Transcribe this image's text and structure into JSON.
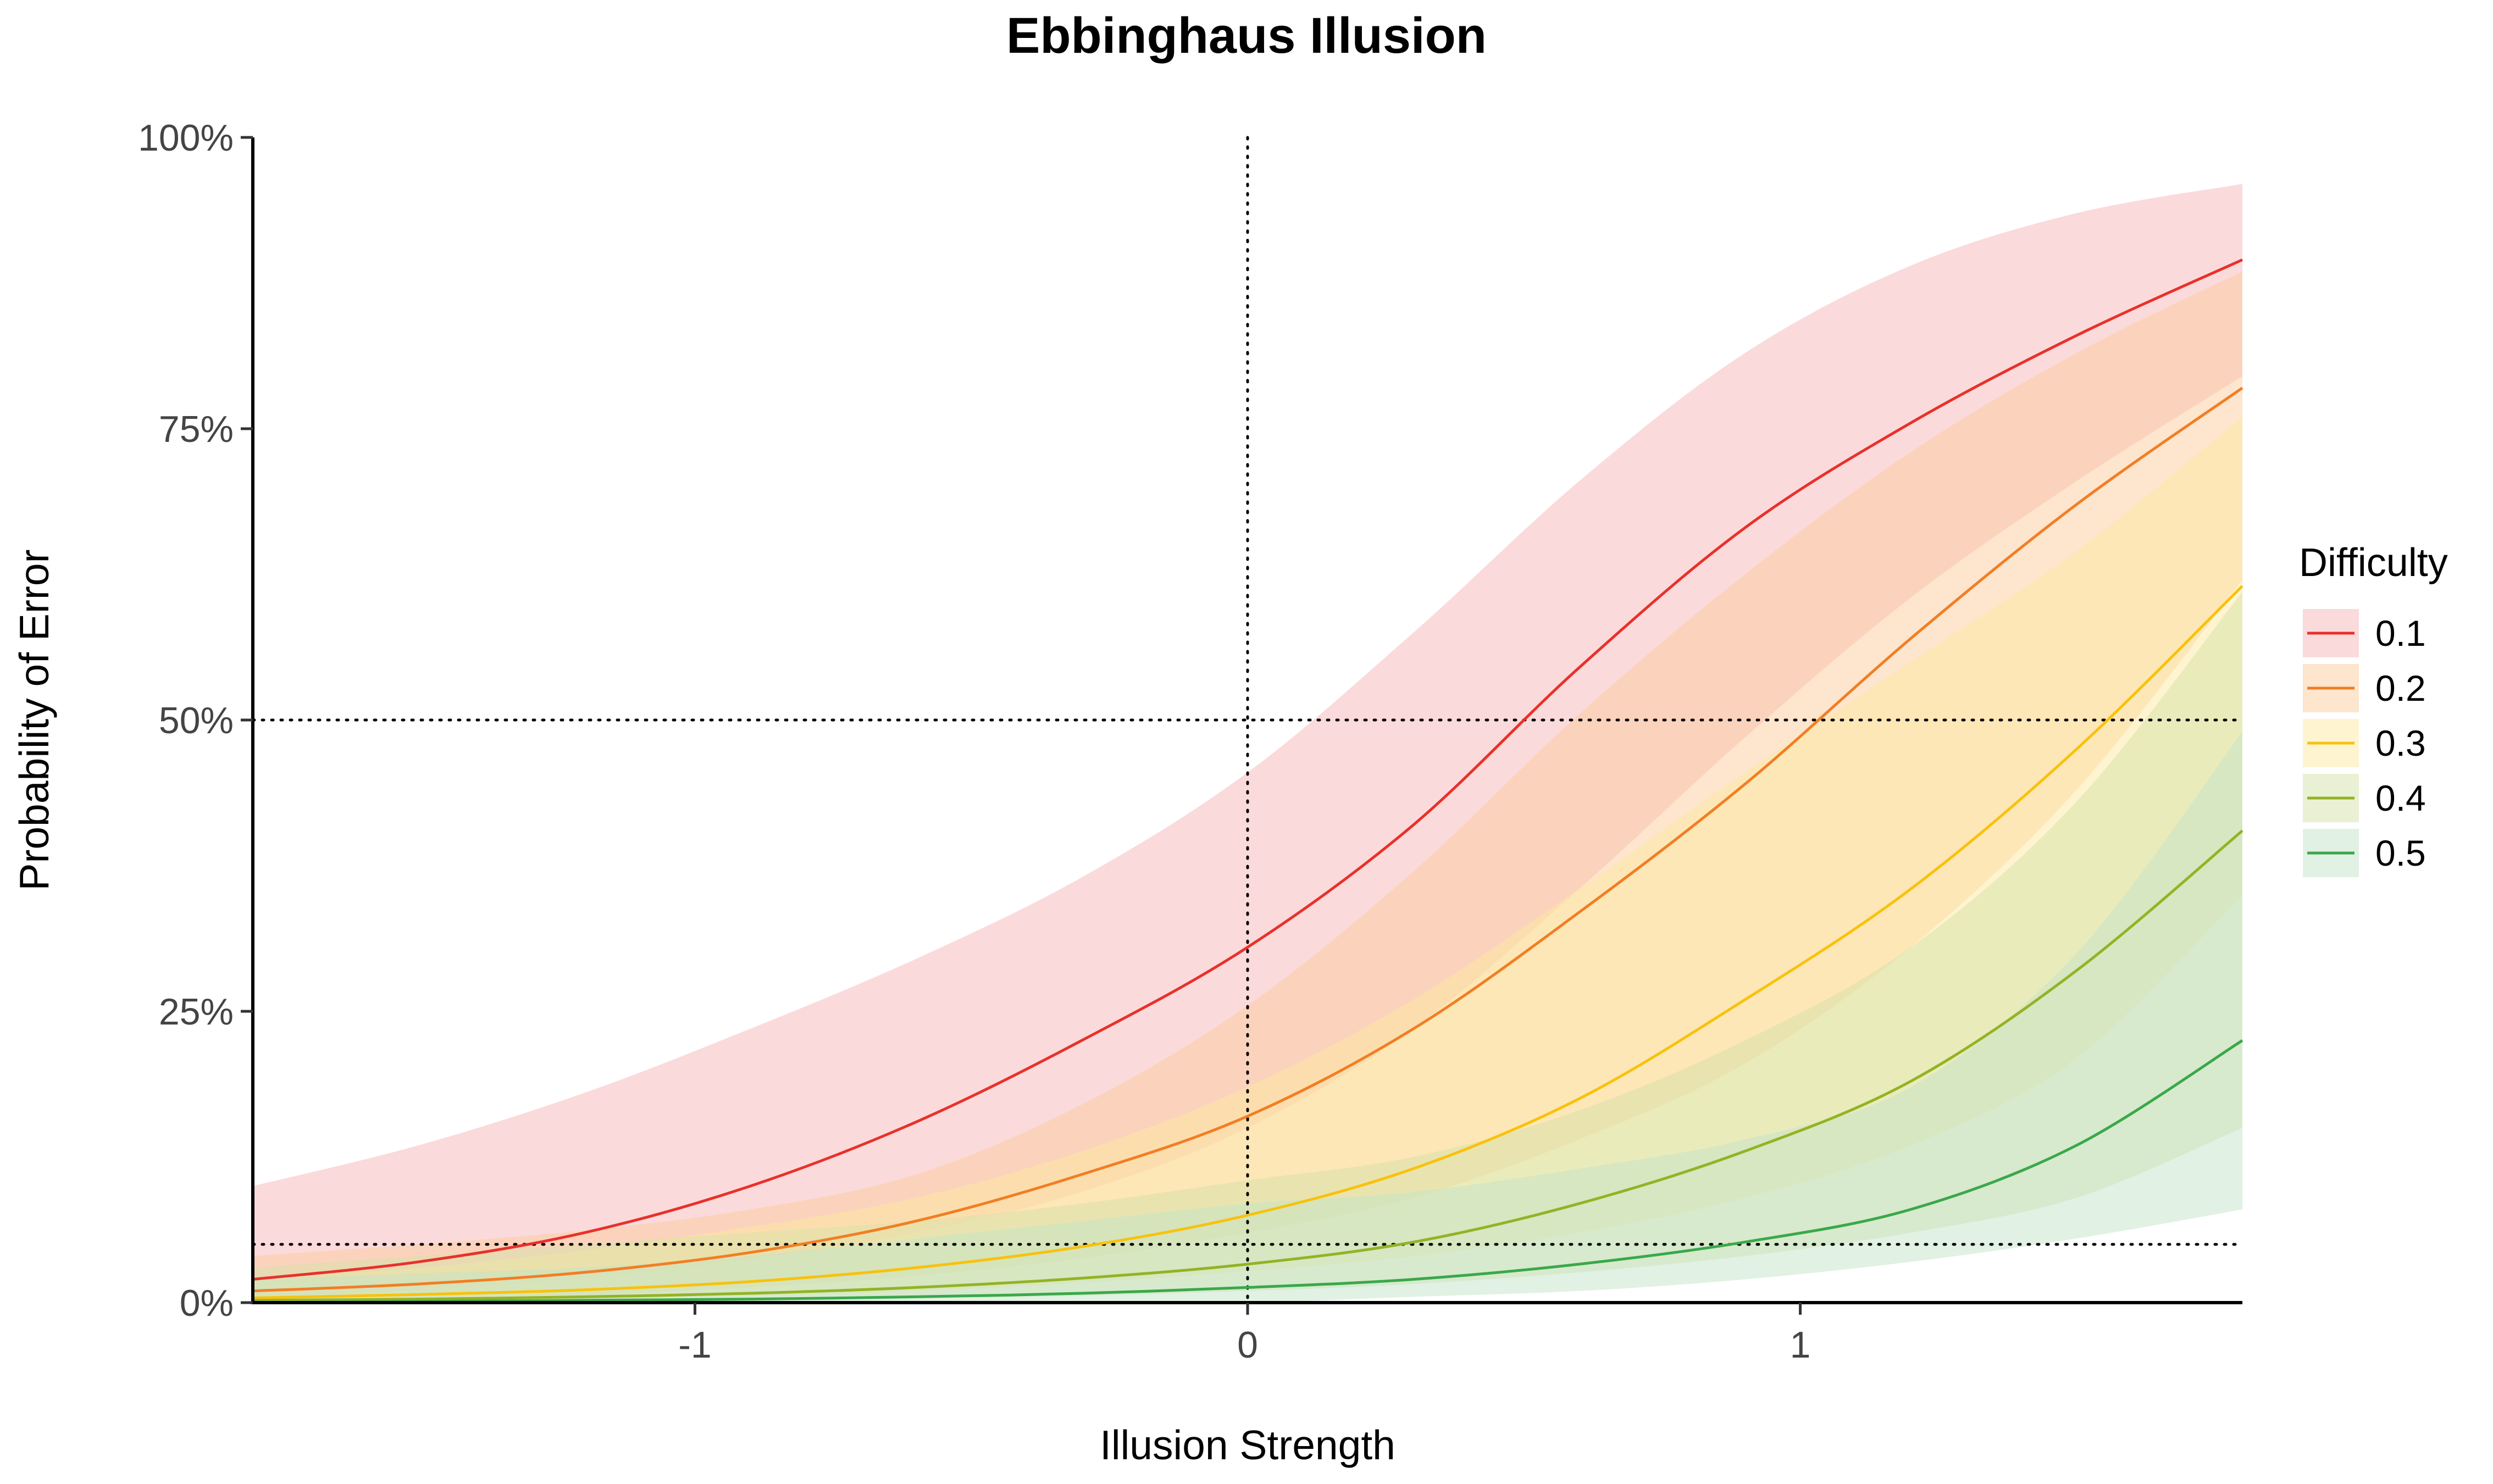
{
  "chart_data": {
    "type": "line",
    "title": "Ebbinghaus Illusion",
    "xlabel": "Illusion Strength",
    "ylabel": "Probability of Error",
    "xlim": [
      -1.8,
      1.8
    ],
    "ylim": [
      0,
      1
    ],
    "x_ticks": [
      -1,
      0,
      1
    ],
    "x_tick_labels": [
      "-1",
      "0",
      "1"
    ],
    "y_ticks": [
      0,
      0.25,
      0.5,
      0.75,
      1
    ],
    "y_tick_labels": [
      "0%",
      "25%",
      "50%",
      "75%",
      "100%"
    ],
    "reference_lines": {
      "vertical": [
        0
      ],
      "horizontal": [
        0.5,
        0.05
      ],
      "style": "dotted"
    },
    "grid": false,
    "legend": {
      "title": "Difficulty",
      "position": "right"
    },
    "x": [
      -1.8,
      -1.5,
      -1.2,
      -0.9,
      -0.6,
      -0.3,
      0,
      0.3,
      0.6,
      0.9,
      1.2,
      1.5,
      1.8
    ],
    "series": [
      {
        "name": "0.1",
        "color": "#E8312A",
        "fill": "#F8B6B8",
        "values": [
          0.02,
          0.035,
          0.06,
          0.1,
          0.155,
          0.225,
          0.305,
          0.41,
          0.545,
          0.665,
          0.755,
          0.83,
          0.895
        ],
        "lower": [
          0.005,
          0.011,
          0.021,
          0.037,
          0.06,
          0.095,
          0.15,
          0.235,
          0.355,
          0.485,
          0.605,
          0.705,
          0.795
        ],
        "upper": [
          0.1,
          0.135,
          0.18,
          0.235,
          0.295,
          0.365,
          0.455,
          0.575,
          0.705,
          0.815,
          0.89,
          0.935,
          0.96
        ]
      },
      {
        "name": "0.2",
        "color": "#F27E23",
        "fill": "#FBCB9E",
        "values": [
          0.01,
          0.016,
          0.026,
          0.043,
          0.07,
          0.11,
          0.16,
          0.235,
          0.335,
          0.445,
          0.57,
          0.685,
          0.785
        ],
        "lower": [
          0.002,
          0.004,
          0.007,
          0.013,
          0.023,
          0.038,
          0.06,
          0.09,
          0.14,
          0.205,
          0.305,
          0.44,
          0.62
        ],
        "upper": [
          0.04,
          0.05,
          0.062,
          0.08,
          0.11,
          0.17,
          0.255,
          0.37,
          0.505,
          0.625,
          0.73,
          0.815,
          0.885
        ]
      },
      {
        "name": "0.3",
        "color": "#F8C20C",
        "fill": "#FDE9A0",
        "values": [
          0.004,
          0.007,
          0.011,
          0.018,
          0.03,
          0.048,
          0.075,
          0.115,
          0.175,
          0.26,
          0.355,
          0.475,
          0.615
        ],
        "lower": [
          0.001,
          0.002,
          0.003,
          0.006,
          0.01,
          0.017,
          0.027,
          0.04,
          0.06,
          0.09,
          0.135,
          0.21,
          0.35
        ],
        "upper": [
          0.02,
          0.03,
          0.045,
          0.065,
          0.09,
          0.13,
          0.185,
          0.26,
          0.355,
          0.455,
          0.55,
          0.645,
          0.76
        ]
      },
      {
        "name": "0.4",
        "color": "#93B325",
        "fill": "#D6E2A8",
        "values": [
          0.002,
          0.003,
          0.005,
          0.008,
          0.013,
          0.021,
          0.033,
          0.052,
          0.085,
          0.13,
          0.19,
          0.285,
          0.405
        ],
        "lower": [
          0.0,
          0.001,
          0.001,
          0.002,
          0.004,
          0.006,
          0.01,
          0.016,
          0.026,
          0.04,
          0.06,
          0.09,
          0.15
        ],
        "upper": [
          0.03,
          0.04,
          0.05,
          0.06,
          0.07,
          0.085,
          0.105,
          0.125,
          0.165,
          0.225,
          0.305,
          0.43,
          0.61
        ]
      },
      {
        "name": "0.5",
        "color": "#3AA84A",
        "fill": "#C4E4C7",
        "values": [
          0.0,
          0.001,
          0.002,
          0.003,
          0.005,
          0.008,
          0.013,
          0.02,
          0.033,
          0.052,
          0.08,
          0.135,
          0.225
        ],
        "lower": [
          0.0,
          0.0,
          0.0,
          0.0,
          0.0,
          0.0,
          0.0,
          0.005,
          0.01,
          0.02,
          0.035,
          0.055,
          0.08
        ],
        "upper": [
          0.02,
          0.025,
          0.03,
          0.04,
          0.055,
          0.07,
          0.085,
          0.095,
          0.115,
          0.14,
          0.185,
          0.3,
          0.49
        ]
      }
    ]
  }
}
